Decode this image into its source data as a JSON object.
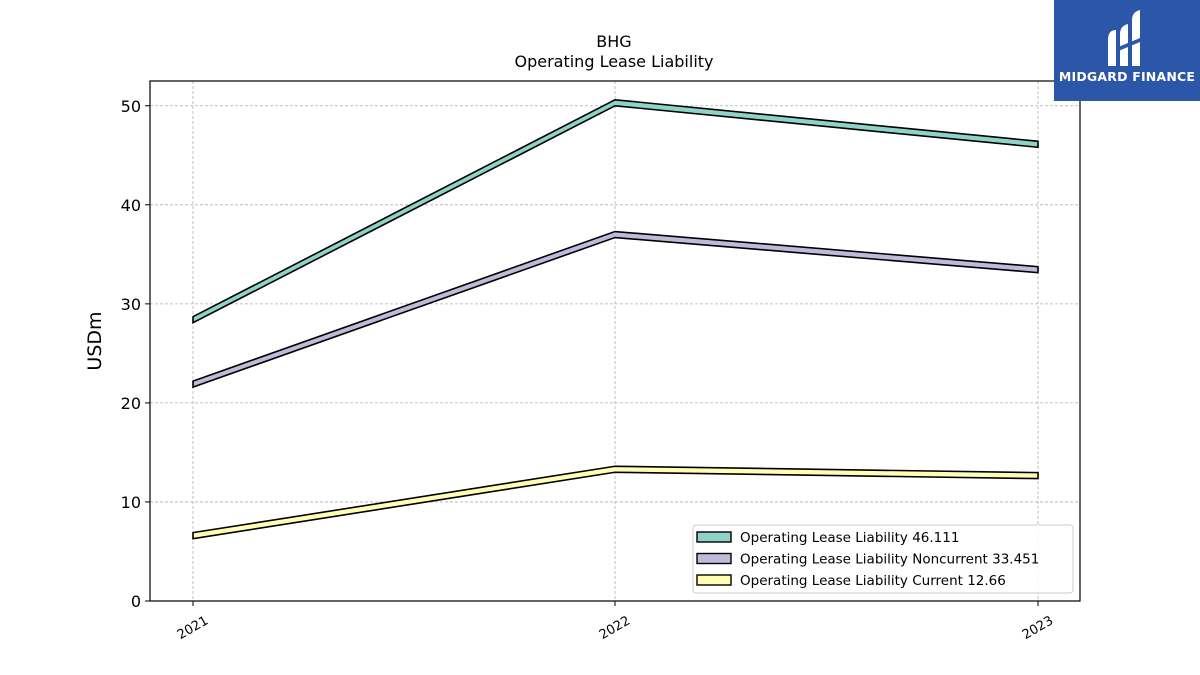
{
  "chart_data": {
    "type": "line",
    "title": "BHG",
    "subtitle": "Operating Lease Liability",
    "ylabel": "USDm",
    "xlabel": "",
    "categories": [
      "2021",
      "2022",
      "2023"
    ],
    "ylim": [
      0,
      52.5
    ],
    "yticks": [
      0,
      10,
      20,
      30,
      40,
      50
    ],
    "grid": true,
    "legend_position": "lower-right",
    "series": [
      {
        "name": "Operating Lease Liability",
        "legend_label": "Operating Lease Liability  46.111",
        "values": [
          28.4,
          50.3,
          46.111
        ],
        "color": "#8dd3c7"
      },
      {
        "name": "Operating Lease Liability Noncurrent",
        "legend_label": "Operating Lease Liability Noncurrent  33.451",
        "values": [
          21.9,
          37.0,
          33.451
        ],
        "color": "#bebada"
      },
      {
        "name": "Operating Lease Liability Current",
        "legend_label": "Operating Lease Liability Current  12.66",
        "values": [
          6.6,
          13.3,
          12.66
        ],
        "color": "#ffffb3"
      }
    ]
  },
  "logo": {
    "text": "MIDGARD FINANCE",
    "background": "#2c56a7"
  }
}
